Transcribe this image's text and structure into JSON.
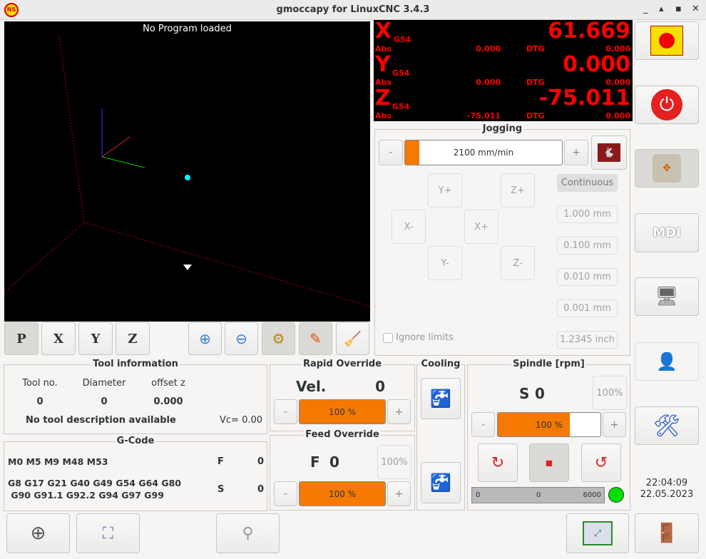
{
  "window": {
    "title": "gmoccapy for LinuxCNC  3.4.3",
    "controls": [
      "_",
      "▴",
      "▪",
      "✕"
    ]
  },
  "plot": {
    "status": "No Program loaded",
    "buttons": [
      "P",
      "X",
      "Y",
      "Z"
    ]
  },
  "dro": [
    {
      "axis": "X",
      "coord": "G54",
      "value": "61.669",
      "abs_label": "Abs",
      "abs": "0.000",
      "dtg_label": "DTG",
      "dtg": "0.000"
    },
    {
      "axis": "Y",
      "coord": "G54",
      "value": "0.000",
      "abs_label": "Abs",
      "abs": "0.000",
      "dtg_label": "DTG",
      "dtg": "0.000"
    },
    {
      "axis": "Z",
      "coord": "G54",
      "value": "-75.011",
      "abs_label": "Abs",
      "abs": "-75.011",
      "dtg_label": "DTG",
      "dtg": "0.000"
    }
  ],
  "jogging": {
    "title": "Jogging",
    "minus": "-",
    "plus": "+",
    "speed": "2100 mm/min",
    "speed_fraction": 0.09,
    "buttons": {
      "yp": "Y+",
      "zp": "Z+",
      "xm": "X-",
      "xp": "X+",
      "ym": "Y-",
      "zm": "Z-"
    },
    "increments": [
      "Continuous",
      "1.000 mm",
      "0.100 mm",
      "0.010 mm",
      "0.001 mm"
    ],
    "ignore_limits": "Ignore limits",
    "ignore_checked": false,
    "inch_inc": "1.2345 inch"
  },
  "tool": {
    "title": "Tool information",
    "headers": [
      "Tool no.",
      "Diameter",
      "offset z"
    ],
    "values": [
      "0",
      "0",
      "0.000"
    ],
    "description": "No tool description available",
    "vc": "Vc= 0.00"
  },
  "gcode": {
    "title": "G-Code",
    "mcodes": "M0 M5 M9 M48 M53",
    "gcodes1": "G8 G17 G21 G40 G49 G54 G64 G80",
    "gcodes2": " G90 G91.1 G92.2 G94 G97 G99",
    "f_label": "F",
    "f": "0",
    "s_label": "S",
    "s": "0"
  },
  "rapid": {
    "title": "Rapid Override",
    "vel_label": "Vel.",
    "vel": "0",
    "value": "100 %",
    "fraction": 1.0
  },
  "feed": {
    "title": "Feed Override",
    "f_label": "F",
    "f": "0",
    "reset": "100%",
    "value": "100 %",
    "fraction": 1.0
  },
  "cooling": {
    "title": "Cooling"
  },
  "spindle": {
    "title": "Spindle [rpm]",
    "s_label": "S",
    "s": "0",
    "reset": "100%",
    "value": "100 %",
    "fraction": 0.7,
    "bar_min": "0",
    "bar_val": "0",
    "bar_max": "6000",
    "at_speed_color": "#00e000"
  },
  "clock": {
    "time": "22:04:09",
    "date": "22.05.2023"
  },
  "colors": {
    "accent": "#f57900",
    "dro": "#ff0000"
  }
}
